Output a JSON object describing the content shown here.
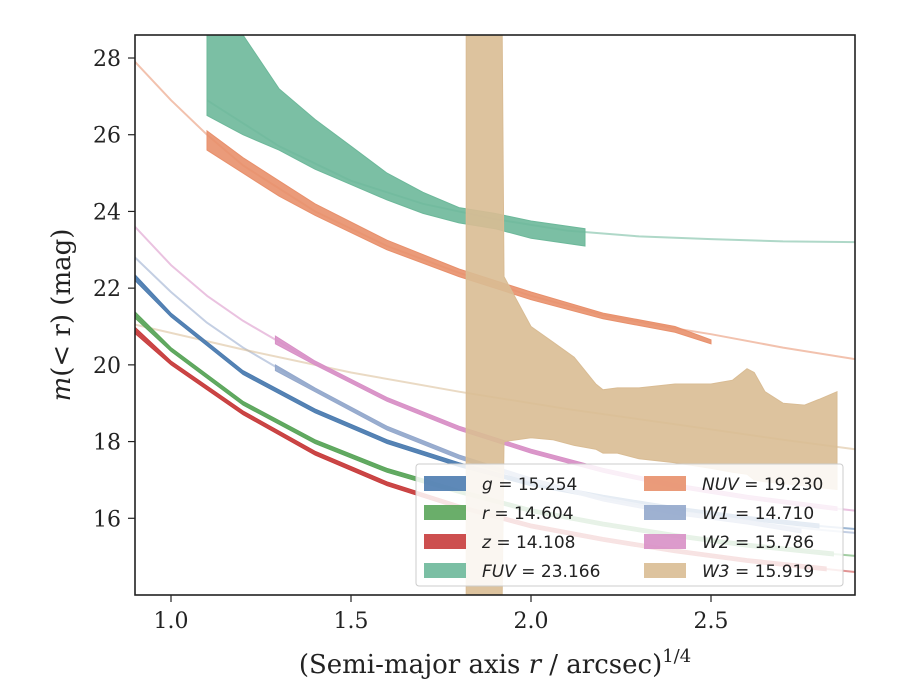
{
  "chart_data": {
    "type": "line",
    "xlabel_main": "(Semi-major axis ",
    "xlabel_var": "r",
    "xlabel_unit": " / arcsec)",
    "xlabel_exp": "1/4",
    "ylabel_main": "m",
    "ylabel_rest": "(< r) (mag)",
    "xlim": [
      0.9,
      2.9
    ],
    "ylim": [
      28.6,
      14.0
    ],
    "x_ticks": [
      1.0,
      1.5,
      2.0,
      2.5
    ],
    "x_tick_labels": [
      "1.0",
      "1.5",
      "2.0",
      "2.5"
    ],
    "y_ticks": [
      16,
      18,
      20,
      22,
      24,
      26,
      28
    ],
    "y_tick_labels": [
      "16",
      "18",
      "20",
      "22",
      "24",
      "26",
      "28"
    ],
    "legend_position": "lower-right",
    "series": [
      {
        "id": "g",
        "band": "g",
        "value": "15.254",
        "color": "#4c7cb0",
        "x_fit": [
          0.9,
          1.0,
          1.2,
          1.4,
          1.6,
          1.8,
          2.0,
          2.2,
          2.4,
          2.6,
          2.8,
          2.9
        ],
        "y_fit": [
          22.3,
          21.3,
          19.8,
          18.8,
          18.0,
          17.4,
          16.9,
          16.55,
          16.25,
          16.0,
          15.8,
          15.72
        ],
        "x_band": [
          0.9,
          1.0,
          1.2,
          1.4,
          1.6,
          1.8,
          2.0,
          2.2,
          2.4,
          2.6,
          2.8
        ],
        "y_lo": [
          22.2,
          21.25,
          19.75,
          18.75,
          17.95,
          17.35,
          16.85,
          16.5,
          16.2,
          15.95,
          15.75
        ],
        "y_hi": [
          22.35,
          21.35,
          19.85,
          18.85,
          18.05,
          17.45,
          16.95,
          16.6,
          16.3,
          16.05,
          15.85
        ]
      },
      {
        "id": "r",
        "band": "r",
        "value": "14.604",
        "color": "#5aa55a",
        "x_fit": [
          0.9,
          1.0,
          1.2,
          1.4,
          1.6,
          1.8,
          2.0,
          2.2,
          2.4,
          2.6,
          2.8,
          2.9
        ],
        "y_fit": [
          21.3,
          20.4,
          19.0,
          18.0,
          17.25,
          16.7,
          16.2,
          15.85,
          15.55,
          15.3,
          15.1,
          15.02
        ],
        "x_band": [
          0.9,
          1.0,
          1.2,
          1.4,
          1.6,
          1.8,
          2.0,
          2.2,
          2.4,
          2.6,
          2.84
        ],
        "y_lo": [
          21.22,
          20.35,
          18.95,
          17.95,
          17.2,
          16.65,
          16.15,
          15.8,
          15.5,
          15.25,
          15.02
        ],
        "y_hi": [
          21.38,
          20.45,
          19.05,
          18.05,
          17.3,
          16.75,
          16.25,
          15.9,
          15.6,
          15.35,
          15.12
        ]
      },
      {
        "id": "z",
        "band": "z",
        "value": "14.108",
        "color": "#c83c3c",
        "x_fit": [
          0.9,
          1.0,
          1.2,
          1.4,
          1.6,
          1.8,
          2.0,
          2.2,
          2.4,
          2.6,
          2.8,
          2.9
        ],
        "y_fit": [
          20.9,
          20.05,
          18.75,
          17.7,
          16.9,
          16.3,
          15.8,
          15.45,
          15.15,
          14.9,
          14.7,
          14.6
        ],
        "x_band": [
          0.9,
          1.0,
          1.2,
          1.4,
          1.6,
          1.8,
          2.0,
          2.2,
          2.4,
          2.6,
          2.82
        ],
        "y_lo": [
          20.82,
          20.0,
          18.7,
          17.65,
          16.85,
          16.25,
          15.75,
          15.4,
          15.1,
          14.85,
          14.63
        ],
        "y_hi": [
          20.98,
          20.1,
          18.8,
          17.75,
          16.95,
          16.35,
          15.85,
          15.5,
          15.2,
          14.95,
          14.73
        ]
      },
      {
        "id": "fuv",
        "band": "FUV",
        "value": "23.166",
        "color": "#6db89a",
        "x_fit": [
          1.1,
          1.3,
          1.5,
          1.7,
          1.9,
          2.1,
          2.3,
          2.5,
          2.7,
          2.9
        ],
        "y_fit": [
          26.9,
          25.7,
          24.8,
          24.2,
          23.8,
          23.5,
          23.35,
          23.28,
          23.22,
          23.2
        ],
        "x_band": [
          1.1,
          1.2,
          1.3,
          1.4,
          1.5,
          1.6,
          1.7,
          1.8,
          1.9,
          2.0,
          2.15
        ],
        "y_lo": [
          26.5,
          26.0,
          25.6,
          25.1,
          24.7,
          24.3,
          23.95,
          23.7,
          23.55,
          23.3,
          23.1
        ],
        "y_hi": [
          28.6,
          28.6,
          27.2,
          26.4,
          25.7,
          25.0,
          24.5,
          24.1,
          23.95,
          23.75,
          23.55
        ]
      },
      {
        "id": "nuv",
        "band": "NUV",
        "value": "19.230",
        "color": "#e8906c",
        "x_fit": [
          0.9,
          1.0,
          1.1,
          1.2,
          1.3,
          1.4,
          1.6,
          1.8,
          2.0,
          2.2,
          2.4,
          2.5,
          2.7,
          2.9
        ],
        "y_fit": [
          27.9,
          26.9,
          26.0,
          25.2,
          24.6,
          24.0,
          23.1,
          22.4,
          21.8,
          21.3,
          20.95,
          20.8,
          20.45,
          20.15
        ],
        "x_band": [
          1.1,
          1.2,
          1.3,
          1.4,
          1.6,
          1.8,
          2.0,
          2.2,
          2.4,
          2.5
        ],
        "y_lo": [
          25.6,
          25.0,
          24.4,
          23.9,
          23.0,
          22.3,
          21.7,
          21.2,
          20.85,
          20.55
        ],
        "y_hi": [
          26.1,
          25.4,
          24.8,
          24.2,
          23.25,
          22.5,
          21.9,
          21.35,
          21.0,
          20.65
        ]
      },
      {
        "id": "w1",
        "band": "W1",
        "value": "14.710",
        "color": "#94a8cc",
        "x_fit": [
          0.9,
          1.0,
          1.1,
          1.2,
          1.3,
          1.4,
          1.6,
          1.8,
          2.0,
          2.2,
          2.4,
          2.6,
          2.8,
          2.9
        ],
        "y_fit": [
          22.8,
          21.9,
          21.1,
          20.45,
          19.9,
          19.35,
          18.35,
          17.6,
          17.0,
          16.5,
          16.15,
          15.9,
          15.7,
          15.62
        ],
        "x_band": [
          1.29,
          1.4,
          1.6,
          1.8,
          2.0,
          2.2,
          2.4,
          2.6,
          2.75
        ],
        "y_lo": [
          19.85,
          19.3,
          18.3,
          17.55,
          16.95,
          16.45,
          16.1,
          15.85,
          15.62
        ],
        "y_hi": [
          20.0,
          19.4,
          18.4,
          17.65,
          17.05,
          16.55,
          16.2,
          15.95,
          15.72
        ]
      },
      {
        "id": "w2",
        "band": "W2",
        "value": "15.786",
        "color": "#d890c6",
        "x_fit": [
          0.9,
          1.0,
          1.1,
          1.2,
          1.3,
          1.4,
          1.6,
          1.8,
          2.0,
          2.2,
          2.4,
          2.6,
          2.8,
          2.9
        ],
        "y_fit": [
          23.6,
          22.6,
          21.8,
          21.15,
          20.6,
          20.05,
          19.1,
          18.35,
          17.75,
          17.25,
          16.85,
          16.55,
          16.3,
          16.2
        ],
        "x_band": [
          1.29,
          1.4,
          1.6,
          1.8,
          2.0,
          2.2,
          2.4,
          2.6,
          2.85
        ],
        "y_lo": [
          20.55,
          20.0,
          19.05,
          18.3,
          17.7,
          17.2,
          16.8,
          16.5,
          16.2
        ],
        "y_hi": [
          20.75,
          20.1,
          19.15,
          18.4,
          17.8,
          17.3,
          16.9,
          16.6,
          16.3
        ]
      },
      {
        "id": "w3",
        "band": "W3",
        "value": "15.919",
        "color": "#d9bc94",
        "x_fit": [
          0.9,
          1.2,
          1.5,
          1.8,
          2.1,
          2.4,
          2.7,
          2.9
        ],
        "y_fit": [
          21.05,
          20.4,
          19.8,
          19.3,
          18.85,
          18.45,
          18.05,
          17.8
        ],
        "x_band": [
          1.82,
          1.92,
          1.925,
          2.0,
          2.06,
          2.12,
          2.18,
          2.2,
          2.24,
          2.3,
          2.4,
          2.5,
          2.56,
          2.6,
          2.62,
          2.65,
          2.7,
          2.76,
          2.8,
          2.85
        ],
        "y_lo": [
          28.6,
          28.6,
          22.3,
          21.0,
          20.6,
          20.2,
          19.5,
          19.35,
          19.4,
          19.4,
          19.5,
          19.5,
          19.6,
          19.9,
          19.8,
          19.3,
          19.0,
          18.95,
          19.1,
          19.3
        ],
        "y_hi": [
          14.0,
          14.0,
          18.0,
          18.1,
          18.05,
          17.9,
          17.8,
          17.7,
          17.7,
          17.55,
          17.45,
          17.3,
          17.2,
          17.15,
          17.0,
          16.95,
          16.9,
          16.85,
          16.8,
          16.75
        ]
      }
    ]
  }
}
